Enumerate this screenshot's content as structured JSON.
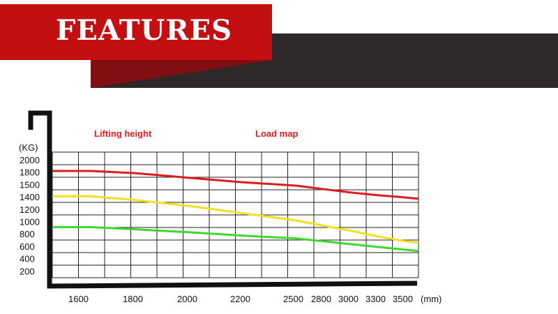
{
  "banner": {
    "title": "FEATURES",
    "colors": {
      "red": "#c40f12",
      "dark": "#2e2828"
    }
  },
  "chart_data": {
    "type": "line",
    "title": "Load map",
    "subtitle": "Lifting height",
    "ylabel": "(KG)",
    "xlabel": "(mm)",
    "x": [
      1600,
      1800,
      2000,
      2200,
      2500,
      2800,
      3000,
      3300,
      3500
    ],
    "yticks": [
      2000,
      1800,
      1500,
      1400,
      1200,
      1000,
      800,
      600,
      400,
      200
    ],
    "series": [
      {
        "color": "#e01b1b",
        "values": [
          1900,
          1860,
          1780,
          1700,
          1640,
          1580,
          1520,
          1470,
          1430
        ]
      },
      {
        "color": "#f2e01f",
        "values": [
          1450,
          1380,
          1280,
          1150,
          1020,
          930,
          840,
          740,
          650
        ]
      },
      {
        "color": "#3ed82e",
        "values": [
          900,
          860,
          810,
          750,
          700,
          650,
          600,
          550,
          500
        ]
      }
    ],
    "grid": true,
    "legend": "none"
  }
}
